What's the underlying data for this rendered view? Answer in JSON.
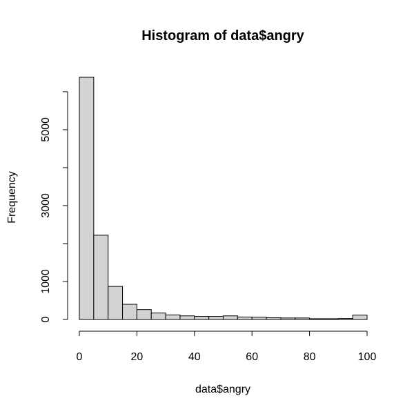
{
  "chart_data": {
    "type": "bar",
    "title": "Histogram of data$angry",
    "xlabel": "data$angry",
    "ylabel": "Frequency",
    "bin_width": 5,
    "bin_edges": [
      0,
      5,
      10,
      15,
      20,
      25,
      30,
      35,
      40,
      45,
      50,
      55,
      60,
      65,
      70,
      75,
      80,
      85,
      90,
      95,
      100
    ],
    "values": [
      6380,
      2220,
      870,
      400,
      260,
      170,
      120,
      95,
      80,
      80,
      95,
      65,
      60,
      45,
      40,
      40,
      20,
      20,
      25,
      115
    ],
    "xlim": [
      0,
      100
    ],
    "ylim": [
      0,
      6380
    ],
    "x_ticks": [
      0,
      20,
      40,
      60,
      80,
      100
    ],
    "y_ticks": [
      0,
      1000,
      3000,
      5000
    ],
    "y_minor_ticks": [
      0,
      1000,
      2000,
      3000,
      4000,
      5000,
      6000
    ],
    "bar_fill": "#d3d3d3",
    "bar_stroke": "#000000",
    "grid": false
  }
}
